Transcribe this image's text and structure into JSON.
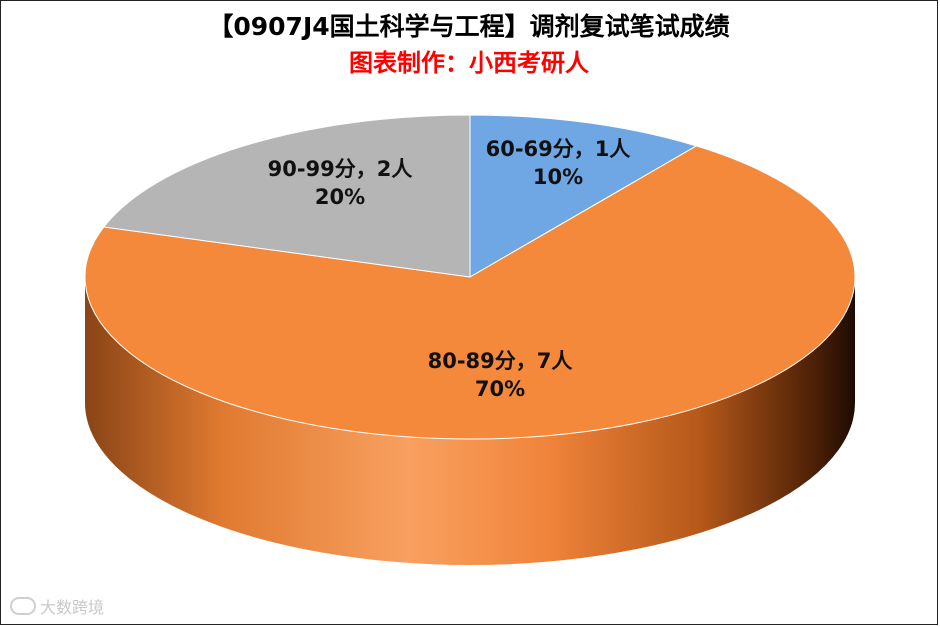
{
  "title": "【0907J4国土科学与工程】调剂复试笔试成绩",
  "subtitle": "图表制作：小西考研人",
  "watermark": "大数跨境",
  "colors": {
    "slice_60_69": "#6ea7e3",
    "slice_80_89": "#f4893b",
    "slice_90_99": "#b5b5b5",
    "subtitle": "#ff0000"
  },
  "chart_data": {
    "type": "pie",
    "style": "3d",
    "title": "【0907J4国土科学与工程】调剂复试笔试成绩",
    "subtitle": "图表制作：小西考研人",
    "slices": [
      {
        "category": "60-69分",
        "count": 1,
        "percent": 10,
        "label_line1": "60-69分，1人",
        "label_line2": "10%"
      },
      {
        "category": "80-89分",
        "count": 7,
        "percent": 70,
        "label_line1": "80-89分，7人",
        "label_line2": "70%"
      },
      {
        "category": "90-99分",
        "count": 2,
        "percent": 20,
        "label_line1": "90-99分，2人",
        "label_line2": "20%"
      }
    ]
  }
}
